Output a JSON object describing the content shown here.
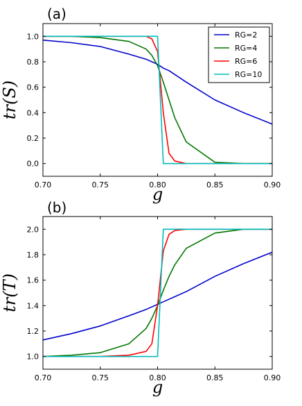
{
  "colors": {
    "RG=2": "#0000cc",
    "RG=4": "#007700",
    "RG=6": "#ff0000",
    "RG=10": "#00bbbb"
  },
  "chart_data": [
    {
      "panel_label": "(a)",
      "type": "line",
      "xlabel": "g",
      "ylabel": "tr(S)",
      "xlim": [
        0.7,
        0.9
      ],
      "ylim": [
        -0.1,
        1.1
      ],
      "xticks": [
        "0.70",
        "0.75",
        "0.80",
        "0.85",
        "0.90"
      ],
      "yticks": [
        "0.0",
        "0.2",
        "0.4",
        "0.6",
        "0.8",
        "1.0"
      ],
      "legend": {
        "position": "top-right",
        "entries": [
          "RG=2",
          "RG=4",
          "RG=6",
          "RG=10"
        ]
      },
      "grid": false,
      "x": [
        0.7,
        0.725,
        0.75,
        0.775,
        0.79,
        0.795,
        0.8,
        0.805,
        0.81,
        0.815,
        0.825,
        0.85,
        0.875,
        0.9
      ],
      "series": [
        {
          "name": "RG=2",
          "values": [
            0.97,
            0.95,
            0.92,
            0.86,
            0.82,
            0.8,
            0.78,
            0.75,
            0.73,
            0.7,
            0.64,
            0.5,
            0.4,
            0.31
          ]
        },
        {
          "name": "RG=4",
          "values": [
            1.0,
            1.0,
            0.99,
            0.96,
            0.9,
            0.85,
            0.77,
            0.64,
            0.5,
            0.36,
            0.17,
            0.01,
            0.0,
            0.0
          ]
        },
        {
          "name": "RG=6",
          "values": [
            1.0,
            1.0,
            1.0,
            1.0,
            1.0,
            0.98,
            0.88,
            0.4,
            0.08,
            0.02,
            0.0,
            0.0,
            0.0,
            0.0
          ]
        },
        {
          "name": "RG=10",
          "values": [
            1.0,
            1.0,
            1.0,
            1.0,
            1.0,
            1.0,
            1.0,
            0.0,
            0.0,
            0.0,
            0.0,
            0.0,
            0.0,
            0.0
          ]
        }
      ]
    },
    {
      "panel_label": "(b)",
      "type": "line",
      "xlabel": "g",
      "ylabel": "tr(T)",
      "xlim": [
        0.7,
        0.9
      ],
      "ylim": [
        0.9,
        2.1
      ],
      "xticks": [
        "0.70",
        "0.75",
        "0.80",
        "0.85",
        "0.90"
      ],
      "yticks": [
        "1.0",
        "1.2",
        "1.4",
        "1.6",
        "1.8",
        "2.0"
      ],
      "legend": null,
      "grid": false,
      "x": [
        0.7,
        0.725,
        0.75,
        0.775,
        0.79,
        0.795,
        0.8,
        0.805,
        0.81,
        0.815,
        0.825,
        0.85,
        0.875,
        0.9
      ],
      "series": [
        {
          "name": "RG=2",
          "values": [
            1.13,
            1.18,
            1.24,
            1.32,
            1.37,
            1.39,
            1.41,
            1.43,
            1.45,
            1.47,
            1.51,
            1.63,
            1.73,
            1.82
          ]
        },
        {
          "name": "RG=4",
          "values": [
            1.0,
            1.01,
            1.03,
            1.1,
            1.22,
            1.3,
            1.4,
            1.52,
            1.63,
            1.72,
            1.85,
            1.97,
            2.0,
            2.0
          ]
        },
        {
          "name": "RG=6",
          "values": [
            1.0,
            1.0,
            1.0,
            1.01,
            1.04,
            1.1,
            1.4,
            1.83,
            1.96,
            1.99,
            2.0,
            2.0,
            2.0,
            2.0
          ]
        },
        {
          "name": "RG=10",
          "values": [
            1.0,
            1.0,
            1.0,
            1.0,
            1.0,
            1.0,
            1.0,
            2.0,
            2.0,
            2.0,
            2.0,
            2.0,
            2.0,
            2.0
          ]
        }
      ]
    }
  ]
}
